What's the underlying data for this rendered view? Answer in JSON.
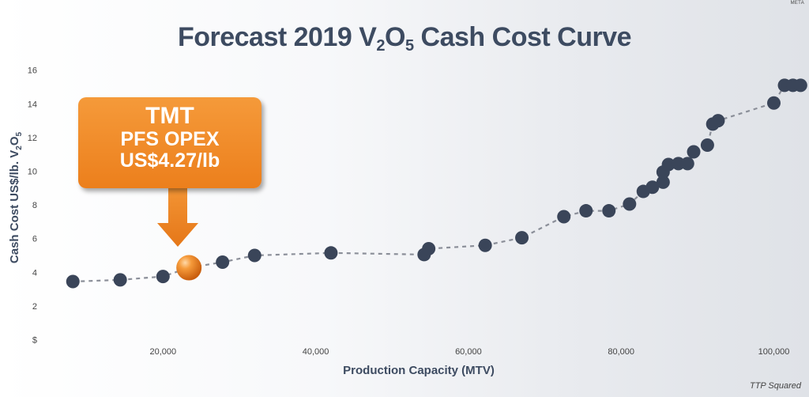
{
  "header": {
    "corner_tag": "META",
    "title_pre": "Forecast 2019 V",
    "title_sub1": "2",
    "title_mid": "O",
    "title_sub2": "5",
    "title_post": " Cash Cost Curve"
  },
  "callout": {
    "line1": "TMT",
    "line2": "PFS OPEX",
    "line3": "US$4.27/lb"
  },
  "footer": {
    "source": "TTP Squared"
  },
  "colors": {
    "accent": "#ef8420",
    "point": "#3a4559",
    "line": "#8b8f99",
    "text": "#3d4b61"
  },
  "chart_data": {
    "type": "scatter",
    "xlabel": "Production Capacity (MTV)",
    "ylabel_pre": "Cash Cost US$/lb. V",
    "ylabel_sub1": "2",
    "ylabel_mid": "O",
    "ylabel_sub2": "5",
    "xlim": [
      0,
      105000
    ],
    "ylim": [
      0,
      16
    ],
    "x_ticks": [
      {
        "value": 20000,
        "label": "20,000"
      },
      {
        "value": 40000,
        "label": "40,000"
      },
      {
        "value": 60000,
        "label": "60,000"
      },
      {
        "value": 80000,
        "label": "80,000"
      },
      {
        "value": 100000,
        "label": "100,000"
      }
    ],
    "y_ticks": [
      {
        "value": 0,
        "label": "$"
      },
      {
        "value": 2,
        "label": "2"
      },
      {
        "value": 4,
        "label": "4"
      },
      {
        "value": 6,
        "label": "6"
      },
      {
        "value": 8,
        "label": "8"
      },
      {
        "value": 10,
        "label": "10"
      },
      {
        "value": 12,
        "label": "12"
      },
      {
        "value": 14,
        "label": "14"
      },
      {
        "value": 16,
        "label": "16"
      }
    ],
    "grid": false,
    "points": [
      {
        "x": 8200,
        "y": 3.45
      },
      {
        "x": 14400,
        "y": 3.55
      },
      {
        "x": 20000,
        "y": 3.75
      },
      {
        "x": 23400,
        "y": 4.27,
        "highlight": true
      },
      {
        "x": 27800,
        "y": 4.6
      },
      {
        "x": 32000,
        "y": 5.0
      },
      {
        "x": 42000,
        "y": 5.15
      },
      {
        "x": 54200,
        "y": 5.05
      },
      {
        "x": 54800,
        "y": 5.4
      },
      {
        "x": 62200,
        "y": 5.6
      },
      {
        "x": 67000,
        "y": 6.05
      },
      {
        "x": 72500,
        "y": 7.3
      },
      {
        "x": 75400,
        "y": 7.65
      },
      {
        "x": 78400,
        "y": 7.65
      },
      {
        "x": 81100,
        "y": 8.05
      },
      {
        "x": 82900,
        "y": 8.8
      },
      {
        "x": 84100,
        "y": 9.05
      },
      {
        "x": 85500,
        "y": 9.35
      },
      {
        "x": 85500,
        "y": 9.95
      },
      {
        "x": 86200,
        "y": 10.4
      },
      {
        "x": 87500,
        "y": 10.45
      },
      {
        "x": 88700,
        "y": 10.45
      },
      {
        "x": 89500,
        "y": 11.15
      },
      {
        "x": 91300,
        "y": 11.55
      },
      {
        "x": 92000,
        "y": 12.8
      },
      {
        "x": 92700,
        "y": 13.0
      },
      {
        "x": 100000,
        "y": 14.05
      },
      {
        "x": 101400,
        "y": 15.1
      },
      {
        "x": 102500,
        "y": 15.1
      },
      {
        "x": 103500,
        "y": 15.1
      }
    ]
  }
}
